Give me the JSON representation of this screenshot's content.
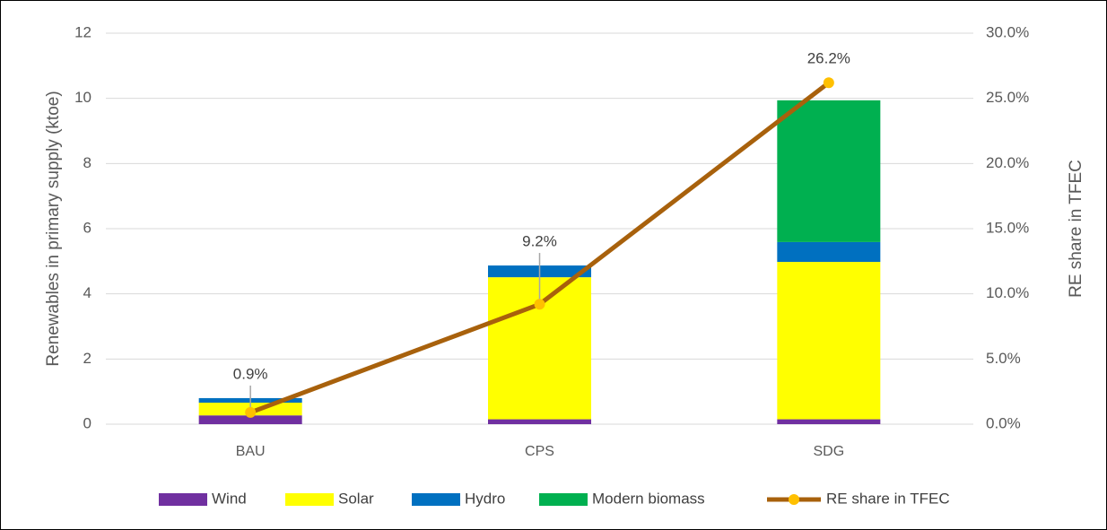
{
  "chart_data": {
    "type": "bar",
    "categories": [
      "BAU",
      "CPS",
      "SDG"
    ],
    "series": [
      {
        "name": "Wind",
        "color": "#7030a0",
        "values": [
          0.27,
          0.15,
          0.15
        ]
      },
      {
        "name": "Solar",
        "color": "#ffff00",
        "values": [
          0.39,
          4.36,
          4.83
        ]
      },
      {
        "name": "Hydro",
        "color": "#0070c0",
        "values": [
          0.14,
          0.36,
          0.61
        ]
      },
      {
        "name": "Modern biomass",
        "color": "#00b050",
        "values": [
          0,
          0,
          4.35
        ]
      },
      {
        "name": "RE share in TFEC",
        "type": "line",
        "axis": "y2",
        "color": "#a8610c",
        "marker_color": "#ffc000",
        "values": [
          0.9,
          9.2,
          26.2
        ],
        "value_labels": [
          "0.9%",
          "9.2%",
          "26.2%"
        ]
      }
    ],
    "y_label": "Renewables in primary supply (ktoe)",
    "y2_label": "RE share in TFEC",
    "ylim": [
      0,
      12
    ],
    "yticks": [
      0,
      2,
      4,
      6,
      8,
      10,
      12
    ],
    "y2lim": [
      0,
      30
    ],
    "y2ticks": [
      {
        "value": 0,
        "label": "0.0%"
      },
      {
        "value": 5,
        "label": "5.0%"
      },
      {
        "value": 10,
        "label": "10.0%"
      },
      {
        "value": 15,
        "label": "15.0%"
      },
      {
        "value": 20,
        "label": "20.0%"
      },
      {
        "value": 25,
        "label": "25.0%"
      },
      {
        "value": 30,
        "label": "30.0%"
      }
    ],
    "grid": true,
    "legend": "bottom"
  }
}
